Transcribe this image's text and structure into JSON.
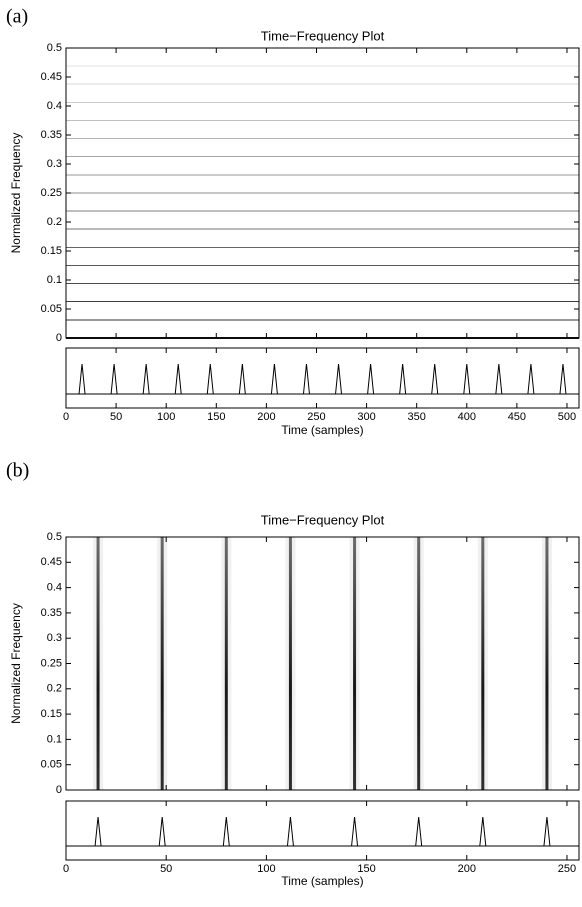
{
  "chart_data": [
    {
      "type": "harmonics",
      "panel_label": "(a)",
      "title": "Time−Frequency Plot",
      "ylabel": "Normalized Frequency",
      "xlabel": "Time (samples)",
      "xlim": [
        0,
        512
      ],
      "xticks": [
        0,
        50,
        100,
        150,
        200,
        250,
        300,
        350,
        400,
        450,
        500
      ],
      "ylim": [
        0,
        0.5
      ],
      "yticks": [
        0,
        0.05,
        0.1,
        0.15,
        0.2,
        0.25,
        0.3,
        0.35,
        0.4,
        0.45,
        0.5
      ],
      "frequencies": [
        0,
        0.031,
        0.063,
        0.094,
        0.125,
        0.156,
        0.188,
        0.219,
        0.25,
        0.281,
        0.313,
        0.344,
        0.375,
        0.406,
        0.438,
        0.469,
        0.5
      ],
      "signal_peaks": [
        16,
        48,
        80,
        112,
        144,
        176,
        208,
        240,
        272,
        304,
        336,
        368,
        400,
        432,
        464,
        496
      ]
    },
    {
      "type": "pulses",
      "panel_label": "(b)",
      "title": "Time−Frequency Plot",
      "ylabel": "Normalized Frequency",
      "xlabel": "Time (samples)",
      "xlim": [
        0,
        256
      ],
      "xticks": [
        0,
        50,
        100,
        150,
        200,
        250
      ],
      "ylim": [
        0,
        0.5
      ],
      "yticks": [
        0,
        0.05,
        0.1,
        0.15,
        0.2,
        0.25,
        0.3,
        0.35,
        0.4,
        0.45,
        0.5
      ],
      "pulse_times": [
        16,
        48,
        80,
        112,
        144,
        176,
        208,
        240
      ],
      "signal_peaks": [
        16,
        48,
        80,
        112,
        144,
        176,
        208,
        240
      ]
    }
  ]
}
